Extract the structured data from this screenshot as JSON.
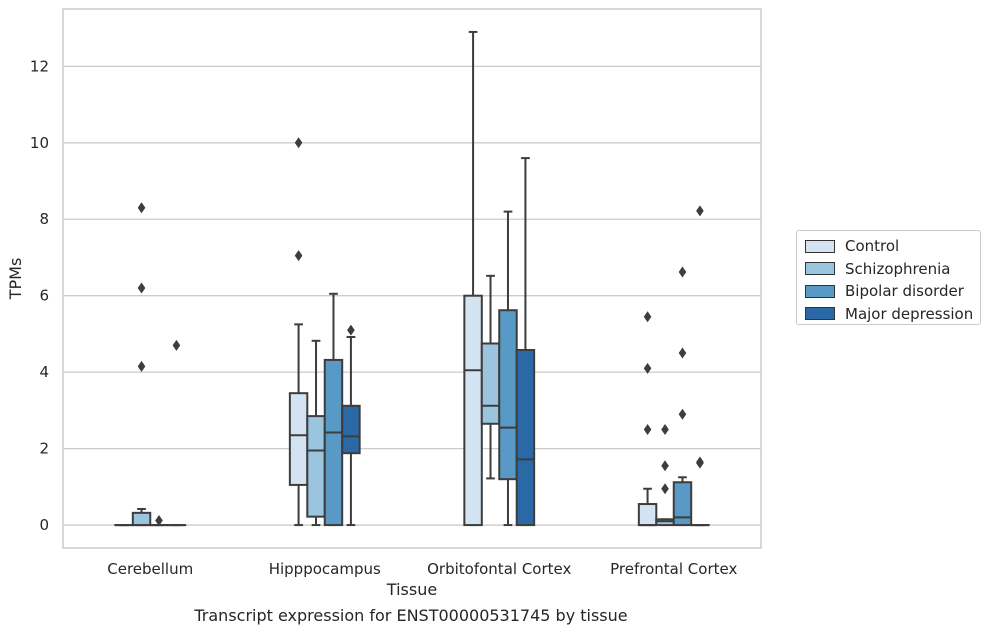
{
  "chart_data": {
    "type": "box",
    "xlabel": "Tissue",
    "ylabel": "TPMs",
    "ylim": [
      -0.6,
      13.5
    ],
    "yticks": [
      0,
      2,
      4,
      6,
      8,
      10,
      12
    ],
    "grid": "horizontal",
    "legend_placement": "right",
    "categories": [
      "Cerebellum",
      "Hipppocampus",
      "Orbitofontal Cortex",
      "Prefrontal Cortex"
    ],
    "series": [
      {
        "name": "Control",
        "color": "#d4e3f2",
        "boxes": [
          {
            "whisker_low": 0,
            "q1": 0,
            "median": 0,
            "q3": 0,
            "whisker_high": 0,
            "outliers": []
          },
          {
            "whisker_low": 0,
            "q1": 1.05,
            "median": 2.35,
            "q3": 3.45,
            "whisker_high": 5.25,
            "outliers": [
              7.05,
              10.0
            ]
          },
          {
            "whisker_low": 0,
            "q1": 0,
            "median": 4.05,
            "q3": 6.0,
            "whisker_high": 12.9,
            "outliers": []
          },
          {
            "whisker_low": 0,
            "q1": 0,
            "median": 0,
            "q3": 0.55,
            "whisker_high": 0.95,
            "outliers": [
              2.5,
              4.1,
              5.45
            ]
          }
        ]
      },
      {
        "name": "Schizophrenia",
        "color": "#9bc4de",
        "boxes": [
          {
            "whisker_low": 0,
            "q1": 0,
            "median": 0,
            "q3": 0.32,
            "whisker_high": 0.42,
            "outliers": [
              4.15,
              6.2,
              8.3
            ]
          },
          {
            "whisker_low": 0,
            "q1": 0.22,
            "median": 1.95,
            "q3": 2.85,
            "whisker_high": 4.82,
            "outliers": []
          },
          {
            "whisker_low": 1.22,
            "q1": 2.65,
            "median": 3.12,
            "q3": 4.75,
            "whisker_high": 6.52,
            "outliers": []
          },
          {
            "whisker_low": 0,
            "q1": 0,
            "median": 0.1,
            "q3": 0.15,
            "whisker_high": 0.15,
            "outliers": [
              0.95,
              1.55,
              2.5
            ]
          }
        ]
      },
      {
        "name": "Bipolar disorder",
        "color": "#5899c5",
        "boxes": [
          {
            "whisker_low": 0,
            "q1": 0,
            "median": 0,
            "q3": 0,
            "whisker_high": 0,
            "outliers": [
              0.12
            ]
          },
          {
            "whisker_low": 0,
            "q1": 0,
            "median": 2.42,
            "q3": 4.32,
            "whisker_high": 6.05,
            "outliers": []
          },
          {
            "whisker_low": 0,
            "q1": 1.2,
            "median": 2.55,
            "q3": 5.62,
            "whisker_high": 8.2,
            "outliers": []
          },
          {
            "whisker_low": 0,
            "q1": 0,
            "median": 0.2,
            "q3": 1.12,
            "whisker_high": 1.25,
            "outliers": [
              2.9,
              4.5,
              6.62
            ]
          }
        ]
      },
      {
        "name": "Major depression",
        "color": "#2b68a6",
        "boxes": [
          {
            "whisker_low": 0,
            "q1": 0,
            "median": 0,
            "q3": 0,
            "whisker_high": 0,
            "outliers": [
              4.7
            ]
          },
          {
            "whisker_low": 0,
            "q1": 1.88,
            "median": 2.32,
            "q3": 3.12,
            "whisker_high": 4.92,
            "outliers": [
              5.1
            ]
          },
          {
            "whisker_low": 0,
            "q1": 0,
            "median": 1.72,
            "q3": 4.58,
            "whisker_high": 9.6,
            "outliers": []
          },
          {
            "whisker_low": 0,
            "q1": 0,
            "median": 0,
            "q3": 0,
            "whisker_high": 0,
            "outliers": [
              1.62,
              1.65,
              8.22
            ]
          }
        ]
      }
    ]
  },
  "caption": "Transcript expression for ENST00000531745 by tissue"
}
